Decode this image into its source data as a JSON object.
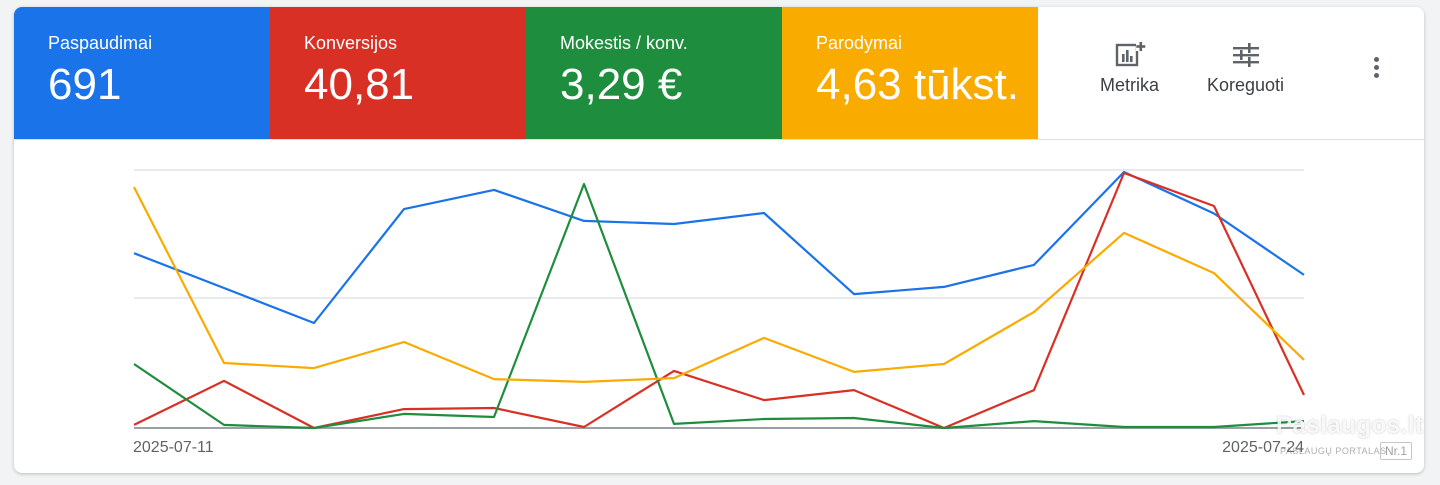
{
  "metrics": [
    {
      "label": "Paspaudimai",
      "value": "691",
      "color": "#1a73e8"
    },
    {
      "label": "Konversijos",
      "value": "40,81",
      "color": "#d93025"
    },
    {
      "label": "Mokestis / konv.",
      "value": "3,29 €",
      "color": "#1e8e3e"
    },
    {
      "label": "Parodymai",
      "value": "4,63 tūkst.",
      "color": "#f9ab00"
    }
  ],
  "toolbar": {
    "metrics_label": "Metrika",
    "metrics_icon": "chart-add-icon",
    "adjust_label": "Koreguoti",
    "adjust_icon": "tune-icon",
    "more_icon": "more-vert-icon"
  },
  "watermark": {
    "main": "Paslaugos.lt",
    "sub": "PASLAUGŲ PORTALAS",
    "nr": "Nr.1"
  },
  "chart_data": {
    "type": "line",
    "x_tick_labels": [
      "2025-07-11",
      "2025-07-24"
    ],
    "grid": true,
    "ylim": [
      0,
      1
    ],
    "series": [
      {
        "color": "#1a73e8",
        "values": [
          0.683,
          0.547,
          0.41,
          0.855,
          0.93,
          0.809,
          0.797,
          0.84,
          0.523,
          0.551,
          0.637,
          1.0,
          0.838,
          0.598
        ]
      },
      {
        "color": "#d93025",
        "values": [
          0.012,
          0.184,
          0.0,
          0.074,
          0.078,
          0.004,
          0.223,
          0.109,
          0.148,
          0.0,
          0.148,
          0.996,
          0.867,
          0.129
        ]
      },
      {
        "color": "#1e8e3e",
        "values": [
          0.25,
          0.012,
          0.0,
          0.055,
          0.043,
          0.953,
          0.016,
          0.035,
          0.039,
          0.0,
          0.027,
          0.004,
          0.004,
          0.027
        ]
      },
      {
        "color": "#f9ab00",
        "values": [
          0.941,
          0.254,
          0.234,
          0.336,
          0.191,
          0.18,
          0.195,
          0.352,
          0.219,
          0.25,
          0.453,
          0.762,
          0.605,
          0.266
        ]
      }
    ]
  }
}
